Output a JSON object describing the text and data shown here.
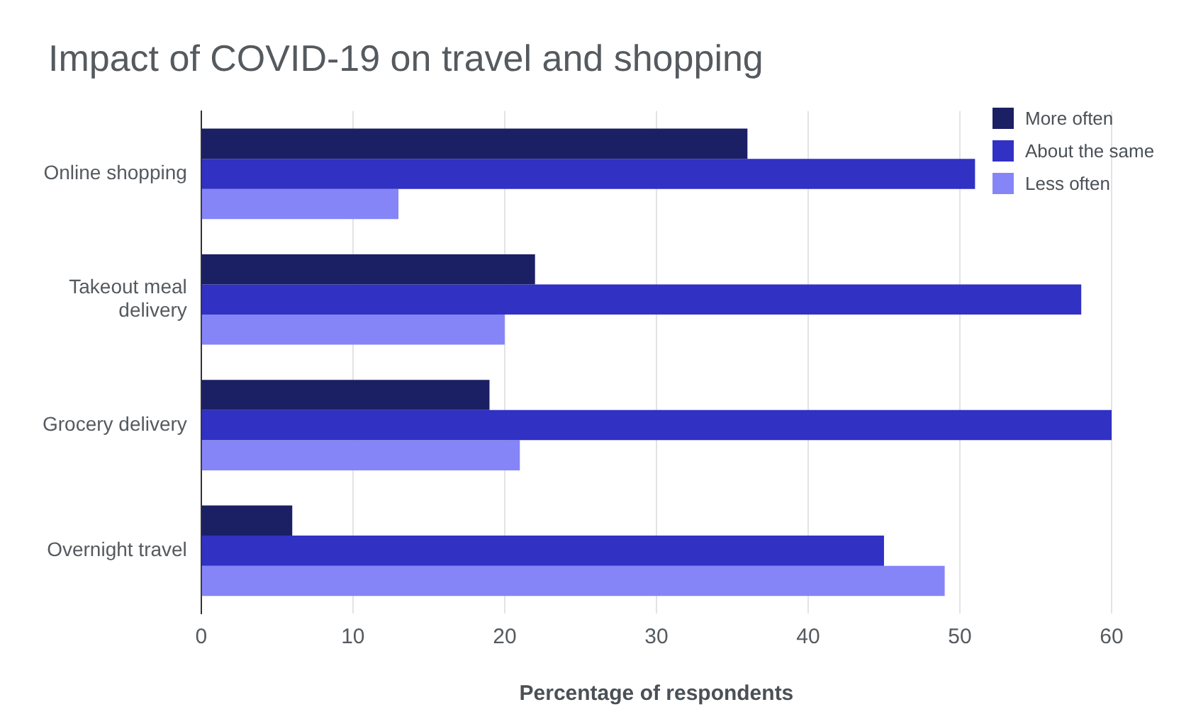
{
  "chart_data": {
    "type": "bar",
    "orientation": "horizontal",
    "title": "Impact of COVID-19 on travel and shopping",
    "xlabel": "Percentage of respondents",
    "categories": [
      "Online shopping",
      "Takeout meal delivery",
      "Grocery delivery",
      "Overnight travel"
    ],
    "series": [
      {
        "name": "More often",
        "color": "#1b1f63",
        "values": [
          36,
          22,
          19,
          6
        ]
      },
      {
        "name": "About the same",
        "color": "#3131c4",
        "values": [
          51,
          58,
          60,
          45
        ]
      },
      {
        "name": "Less often",
        "color": "#8585f7",
        "values": [
          13,
          20,
          21,
          49
        ]
      }
    ],
    "xlim": [
      0,
      60
    ],
    "xticks": [
      0,
      10,
      20,
      30,
      40,
      50,
      60
    ],
    "grid": "x",
    "legend": "top right"
  }
}
